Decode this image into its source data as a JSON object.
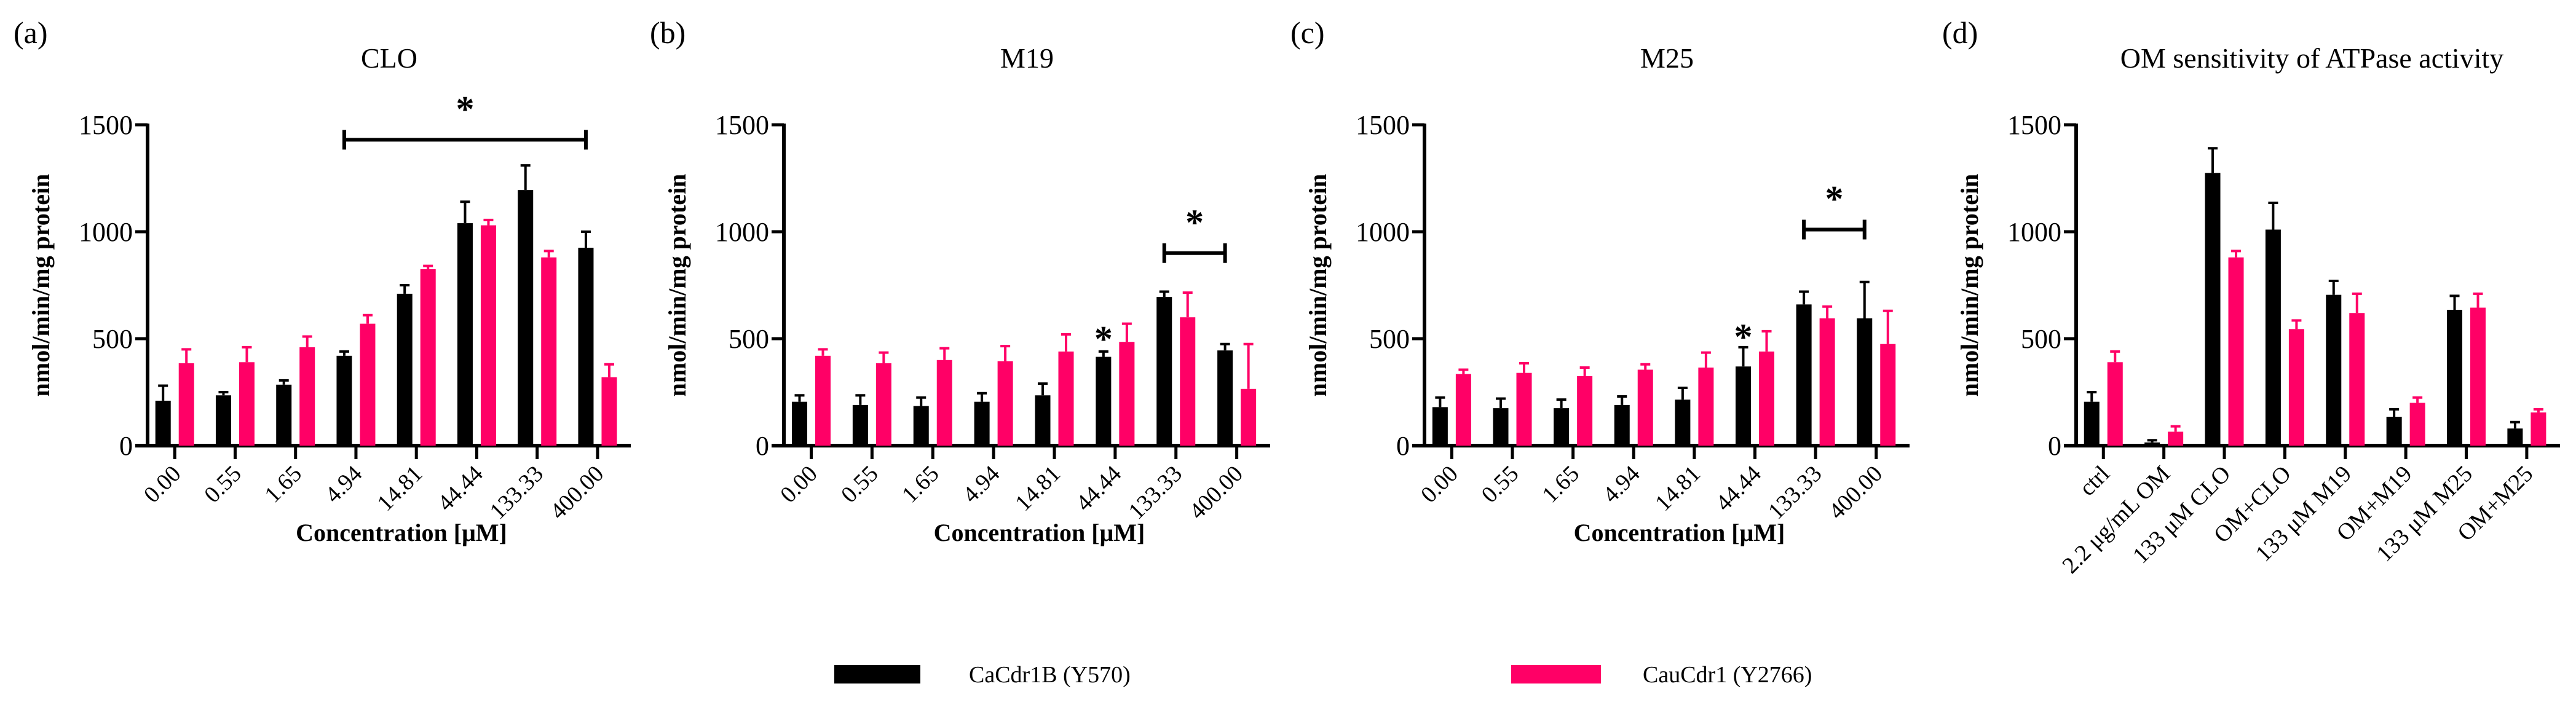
{
  "chart_data": [
    {
      "type": "bar",
      "panel_label": "(a)",
      "title": "CLO",
      "xlabel": "Concentration [μM]",
      "ylabel": "nmol/min/mg protein",
      "ylim": [
        0,
        1500
      ],
      "yticks": [
        "0",
        "500",
        "1000",
        "1500"
      ],
      "categories": [
        "0.00",
        "0.55",
        "1.65",
        "4.94",
        "14.81",
        "44.44",
        "133.33",
        "400.00"
      ],
      "series": [
        {
          "name": "CaCdr1B (Y570)",
          "values": [
            210,
            235,
            285,
            420,
            710,
            1040,
            1195,
            925
          ],
          "errors": [
            70,
            15,
            20,
            20,
            40,
            100,
            115,
            75
          ]
        },
        {
          "name": "CauCdr1 (Y2766)",
          "values": [
            385,
            390,
            460,
            570,
            825,
            1030,
            880,
            320
          ],
          "errors": [
            65,
            70,
            50,
            40,
            15,
            25,
            30,
            60
          ]
        }
      ],
      "significance": [
        {
          "type": "bracket",
          "from": 3,
          "to": 7,
          "level": 1430,
          "label": "*"
        }
      ]
    },
    {
      "type": "bar",
      "panel_label": "(b)",
      "title": "M19",
      "xlabel": "Concentration [μM]",
      "ylabel": "nmol/min/mg protein",
      "ylim": [
        0,
        1500
      ],
      "yticks": [
        "0",
        "500",
        "1000",
        "1500"
      ],
      "categories": [
        "0.00",
        "0.55",
        "1.65",
        "4.94",
        "14.81",
        "44.44",
        "133.33",
        "400.00"
      ],
      "series": [
        {
          "name": "CaCdr1B (Y570)",
          "values": [
            205,
            190,
            185,
            205,
            235,
            415,
            695,
            445
          ],
          "errors": [
            30,
            45,
            40,
            40,
            55,
            25,
            25,
            30
          ]
        },
        {
          "name": "CauCdr1 (Y2766)",
          "values": [
            420,
            385,
            400,
            395,
            440,
            485,
            600,
            265
          ],
          "errors": [
            30,
            50,
            55,
            70,
            80,
            85,
            115,
            210
          ]
        }
      ],
      "significance": [
        {
          "type": "star",
          "at": 5,
          "level": 470,
          "label": "*"
        },
        {
          "type": "bracket",
          "from": 6,
          "to": 7,
          "level": 900,
          "label": "*"
        }
      ]
    },
    {
      "type": "bar",
      "panel_label": "(c)",
      "title": "M25",
      "xlabel": "Concentration [μM]",
      "ylabel": "nmol/min/mg protein",
      "ylim": [
        0,
        1500
      ],
      "yticks": [
        "0",
        "500",
        "1000",
        "1500"
      ],
      "categories": [
        "0.00",
        "0.55",
        "1.65",
        "4.94",
        "14.81",
        "44.44",
        "133.33",
        "400.00"
      ],
      "series": [
        {
          "name": "CaCdr1B (Y570)",
          "values": [
            180,
            175,
            175,
            190,
            215,
            370,
            660,
            595
          ],
          "errors": [
            45,
            45,
            40,
            40,
            55,
            90,
            60,
            170
          ]
        },
        {
          "name": "CauCdr1 (Y2766)",
          "values": [
            335,
            340,
            325,
            355,
            365,
            440,
            595,
            475
          ],
          "errors": [
            20,
            45,
            40,
            25,
            70,
            95,
            55,
            155
          ]
        }
      ],
      "significance": [
        {
          "type": "star",
          "at": 5,
          "level": 480,
          "label": "*"
        },
        {
          "type": "bracket",
          "from": 6,
          "to": 7,
          "level": 1010,
          "label": "*"
        }
      ]
    },
    {
      "type": "bar",
      "panel_label": "(d)",
      "title": "OM sensitivity of ATPase activity",
      "xlabel": "",
      "ylabel": "nmol/min/mg protein",
      "ylim": [
        0,
        1500
      ],
      "yticks": [
        "0",
        "500",
        "1000",
        "1500"
      ],
      "categories": [
        "ctrl",
        "2.2 μg/mL OM",
        "133 μM CLO",
        "OM+CLO",
        "133 μM M19",
        "OM+M19",
        "133 μM M25",
        "OM+M25"
      ],
      "series": [
        {
          "name": "CaCdr1B (Y570)",
          "values": [
            205,
            15,
            1275,
            1010,
            705,
            135,
            635,
            80
          ],
          "errors": [
            45,
            10,
            115,
            125,
            65,
            35,
            65,
            30
          ]
        },
        {
          "name": "CauCdr1 (Y2766)",
          "values": [
            390,
            65,
            880,
            545,
            620,
            200,
            645,
            155
          ],
          "errors": [
            50,
            25,
            30,
            40,
            90,
            25,
            65,
            15
          ]
        }
      ],
      "significance": []
    }
  ],
  "legend": {
    "placement": "bottom-center",
    "items": [
      {
        "label": "CaCdr1B (Y570)",
        "color": "#000000"
      },
      {
        "label": "CauCdr1 (Y2766)",
        "color": "#ff0066"
      }
    ]
  }
}
